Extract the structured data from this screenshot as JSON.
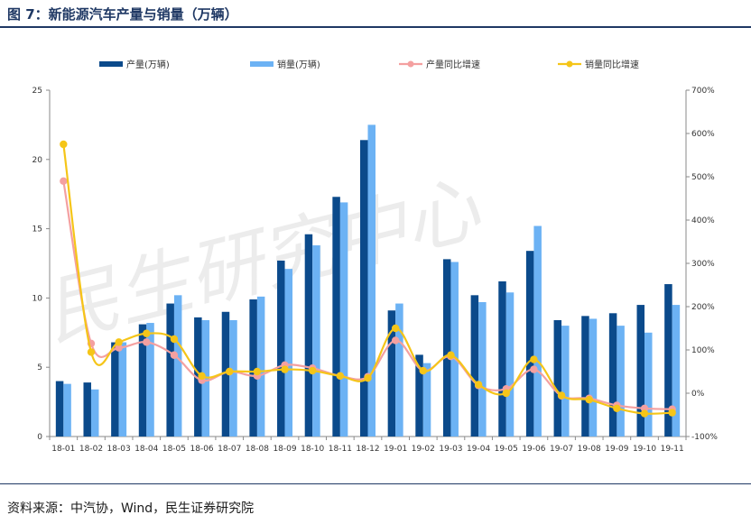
{
  "figure": {
    "title": "图 7：新能源汽车产量与销量（万辆）",
    "source": "资料来源：中汽协，Wind，民生证券研究院",
    "watermark": "民生研究中心"
  },
  "colors": {
    "production_bar": "#0b4a8b",
    "sales_bar": "#6cb2f4",
    "production_growth_line": "#f4a0a0",
    "sales_growth_line": "#f5c518",
    "rule": "#1f3864"
  },
  "chart_data": {
    "type": "bar",
    "categories": [
      "18-01",
      "18-02",
      "18-03",
      "18-04",
      "18-05",
      "18-06",
      "18-07",
      "18-08",
      "18-09",
      "18-10",
      "18-11",
      "18-12",
      "19-01",
      "19-02",
      "19-03",
      "19-04",
      "19-05",
      "19-06",
      "19-07",
      "19-08",
      "19-09",
      "19-10",
      "19-11"
    ],
    "series": [
      {
        "name": "产量(万辆)",
        "type": "bar",
        "axis": "left",
        "values": [
          4.0,
          3.9,
          6.8,
          8.1,
          9.6,
          8.6,
          9.0,
          9.9,
          12.7,
          14.6,
          17.3,
          21.4,
          9.1,
          5.9,
          12.8,
          10.2,
          11.2,
          13.4,
          8.4,
          8.7,
          8.9,
          9.5,
          11.0
        ]
      },
      {
        "name": "销量(万辆)",
        "type": "bar",
        "axis": "left",
        "values": [
          3.8,
          3.4,
          6.8,
          8.2,
          10.2,
          8.4,
          8.4,
          10.1,
          12.1,
          13.8,
          16.9,
          22.5,
          9.6,
          5.3,
          12.6,
          9.7,
          10.4,
          15.2,
          8.0,
          8.5,
          8.0,
          7.5,
          9.5
        ]
      },
      {
        "name": "产量同比增速",
        "type": "line",
        "axis": "right",
        "values": [
          490,
          115,
          105,
          118,
          88,
          30,
          50,
          40,
          65,
          58,
          40,
          38,
          122,
          52,
          85,
          18,
          10,
          55,
          -6,
          -12,
          -28,
          -35,
          -37
        ]
      },
      {
        "name": "销量同比增速",
        "type": "line",
        "axis": "right",
        "values": [
          575,
          95,
          118,
          138,
          125,
          40,
          50,
          50,
          55,
          52,
          40,
          35,
          150,
          52,
          88,
          20,
          0,
          78,
          -5,
          -15,
          -35,
          -47,
          -45
        ]
      }
    ],
    "ylim": [
      0,
      25
    ],
    "yticks": [
      0,
      5,
      10,
      15,
      20,
      25
    ],
    "y2lim": [
      -100,
      700
    ],
    "y2ticks": [
      -100,
      0,
      100,
      200,
      300,
      400,
      500,
      600,
      700
    ],
    "y2_tick_labels": [
      "-100%",
      "0%",
      "100%",
      "200%",
      "300%",
      "400%",
      "500%",
      "600%",
      "700%"
    ],
    "legend_position": "top",
    "grid": false
  }
}
